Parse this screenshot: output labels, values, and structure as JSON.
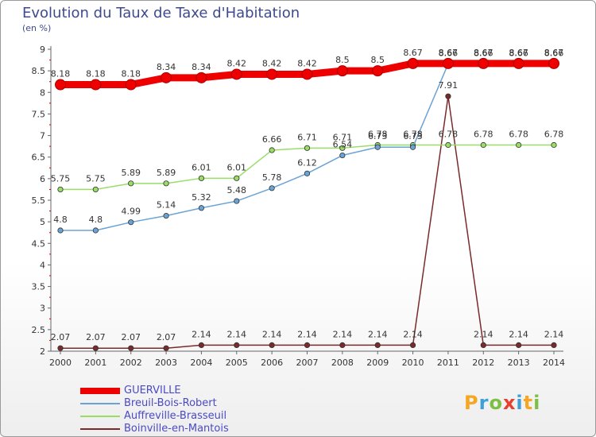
{
  "title": "Evolution du Taux de Taxe d'Habitation",
  "subtitle": "(en %)",
  "logo": {
    "text": "Proxiti",
    "colors": [
      "#f5a623",
      "#3fa0d8",
      "#7bc043",
      "#e8402f",
      "#3fa0d8",
      "#f5a623",
      "#7bc043"
    ]
  },
  "chart_data": {
    "type": "line",
    "categories": [
      "2000",
      "2001",
      "2002",
      "2003",
      "2004",
      "2005",
      "2006",
      "2007",
      "2008",
      "2009",
      "2010",
      "2011",
      "2012",
      "2013",
      "2014"
    ],
    "ylim": [
      2,
      9
    ],
    "yticks": [
      "2",
      "2.5",
      "3",
      "3.5",
      "4",
      "4.5",
      "5",
      "5.5",
      "6",
      "6.5",
      "7",
      "7.5",
      "8",
      "8.5",
      "9"
    ],
    "grid": false,
    "legend_position": "bottom-left",
    "series": [
      {
        "name": "GUERVILLE",
        "color": "#ee0000",
        "values": [
          8.18,
          8.18,
          8.18,
          8.34,
          8.34,
          8.42,
          8.42,
          8.42,
          8.5,
          8.5,
          8.67,
          8.67,
          8.67,
          8.67,
          8.67
        ],
        "labels": [
          "8.18",
          "8.18",
          "8.18",
          "8.34",
          "8.34",
          "8.42",
          "8.42",
          "8.42",
          "8.5",
          "8.5",
          "8.67",
          "8.67",
          "8.67",
          "8.67",
          "8.67"
        ]
      },
      {
        "name": "Breuil-Bois-Robert",
        "color": "#6aa3d5",
        "values": [
          4.8,
          4.8,
          4.99,
          5.14,
          5.32,
          5.48,
          5.78,
          6.12,
          6.54,
          6.73,
          6.73,
          8.66,
          8.66,
          8.66,
          8.66
        ],
        "labels": [
          "4.8",
          "4.8",
          "4.99",
          "5.14",
          "5.32",
          "5.48",
          "5.78",
          "6.12",
          "6.54",
          "6.73",
          "6.73",
          "8.66",
          "8.66",
          "8.66",
          "8.66"
        ]
      },
      {
        "name": "Auffreville-Brasseuil",
        "color": "#99dd66",
        "values": [
          5.75,
          5.75,
          5.89,
          5.89,
          6.01,
          6.01,
          6.66,
          6.71,
          6.71,
          6.78,
          6.78,
          6.78,
          6.78,
          6.78,
          6.78
        ],
        "labels": [
          "5.75",
          "5.75",
          "5.89",
          "5.89",
          "6.01",
          "6.01",
          "6.66",
          "6.71",
          "6.71",
          "6.78",
          "6.78",
          "6.78",
          "6.78",
          "6.78",
          "6.78"
        ]
      },
      {
        "name": "Boinville-en-Mantois",
        "color": "#7a2a2a",
        "values": [
          2.07,
          2.07,
          2.07,
          2.07,
          2.14,
          2.14,
          2.14,
          2.14,
          2.14,
          2.14,
          2.14,
          7.91,
          2.14,
          2.14,
          2.14
        ],
        "labels": [
          "2.07",
          "2.07",
          "2.07",
          "2.07",
          "2.14",
          "2.14",
          "2.14",
          "2.14",
          "2.14",
          "2.14",
          "2.14",
          "7.91",
          "2.14",
          "2.14",
          "2.14"
        ]
      }
    ]
  }
}
